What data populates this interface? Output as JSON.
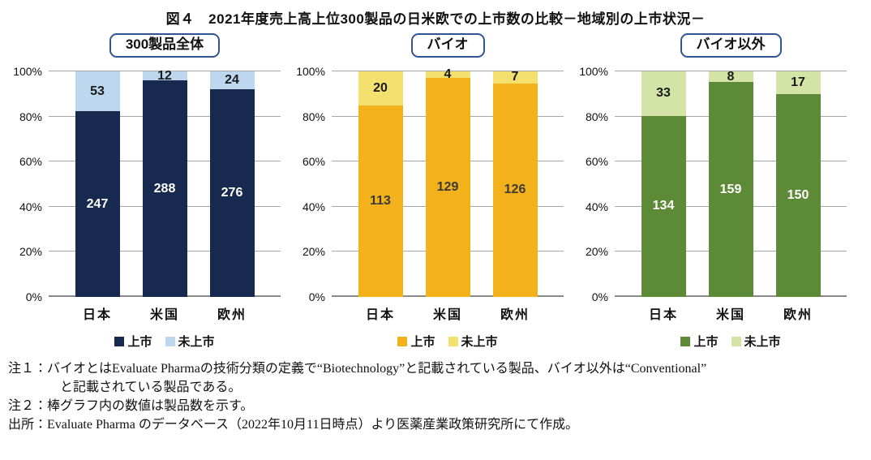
{
  "figure_title": "図４　2021年度売上高上位300製品の日米欧での上市数の比較－地域別の上市状況－",
  "chart_data": [
    {
      "type": "bar",
      "subtype": "stacked-100-percent",
      "title": "300製品全体",
      "categories": [
        "日本",
        "米国",
        "欧州"
      ],
      "series": [
        {
          "name": "上市",
          "values": [
            247,
            288,
            276
          ],
          "color": "#17294e",
          "label_color": "#ffffff"
        },
        {
          "name": "未上市",
          "values": [
            53,
            12,
            24
          ],
          "color": "#bdd7ee",
          "label_color": "#1a1a1a"
        }
      ],
      "ylabel": "",
      "xlabel": "",
      "ylim": [
        0,
        100
      ],
      "yticks_pct": [
        0,
        20,
        40,
        60,
        80,
        100
      ],
      "ytick_suffix": "%",
      "grid": true,
      "legend_position": "bottom"
    },
    {
      "type": "bar",
      "subtype": "stacked-100-percent",
      "title": "バイオ",
      "categories": [
        "日本",
        "米国",
        "欧州"
      ],
      "series": [
        {
          "name": "上市",
          "values": [
            113,
            129,
            126
          ],
          "color": "#f3b11c",
          "label_color": "#3a3a3a"
        },
        {
          "name": "未上市",
          "values": [
            20,
            4,
            7
          ],
          "color": "#f4e06e",
          "label_color": "#1a1a1a"
        }
      ],
      "ylabel": "",
      "xlabel": "",
      "ylim": [
        0,
        100
      ],
      "yticks_pct": [
        0,
        20,
        40,
        60,
        80,
        100
      ],
      "ytick_suffix": "%",
      "grid": true,
      "legend_position": "bottom"
    },
    {
      "type": "bar",
      "subtype": "stacked-100-percent",
      "title": "バイオ以外",
      "categories": [
        "日本",
        "米国",
        "欧州"
      ],
      "series": [
        {
          "name": "上市",
          "values": [
            134,
            159,
            150
          ],
          "color": "#5c8a37",
          "label_color": "#ffffff"
        },
        {
          "name": "未上市",
          "values": [
            33,
            8,
            17
          ],
          "color": "#d4e4a7",
          "label_color": "#1a1a1a"
        }
      ],
      "ylabel": "",
      "xlabel": "",
      "ylim": [
        0,
        100
      ],
      "yticks_pct": [
        0,
        20,
        40,
        60,
        80,
        100
      ],
      "ytick_suffix": "%",
      "grid": true,
      "legend_position": "bottom"
    }
  ],
  "notes": [
    {
      "text": "注１：バイオとはEvaluate Pharmaの技術分類の定義で“Biotechnology”と記載されている製品、バイオ以外は“Conventional”",
      "indent": false
    },
    {
      "text": "と記載されている製品である。",
      "indent": true
    },
    {
      "text": "注２：棒グラフ内の数値は製品数を示す。",
      "indent": false
    },
    {
      "text": "出所：Evaluate Pharma のデータベース（2022年10月11日時点）より医薬産業政策研究所にて作成。",
      "indent": false
    }
  ],
  "colors": {
    "title_box_border": "#2f5597",
    "gridline": "#a6a6a6",
    "baseline": "#8a8a8a"
  }
}
